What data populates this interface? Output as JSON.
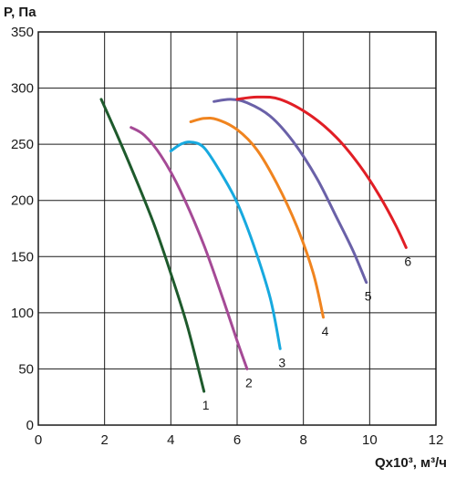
{
  "chart_data": {
    "type": "line",
    "ylabel": "P, Па",
    "xlabel": "Qx10³, м³/ч",
    "xlim": [
      0,
      12
    ],
    "ylim": [
      0,
      350
    ],
    "xticks": [
      0,
      2,
      4,
      6,
      8,
      10,
      12
    ],
    "yticks": [
      0,
      50,
      100,
      150,
      200,
      250,
      300,
      350
    ],
    "grid": true,
    "series": [
      {
        "name": "1",
        "color": "#1e5a2c",
        "points": [
          [
            1.9,
            290
          ],
          [
            2.5,
            250
          ],
          [
            3.0,
            215
          ],
          [
            3.5,
            178
          ],
          [
            4.0,
            135
          ],
          [
            4.5,
            88
          ],
          [
            5.0,
            30
          ]
        ]
      },
      {
        "name": "2",
        "color": "#a54a96",
        "points": [
          [
            2.8,
            265
          ],
          [
            3.2,
            258
          ],
          [
            3.7,
            240
          ],
          [
            4.3,
            208
          ],
          [
            5.0,
            160
          ],
          [
            5.6,
            110
          ],
          [
            6.0,
            75
          ],
          [
            6.3,
            50
          ]
        ]
      },
      {
        "name": "3",
        "color": "#17a9df",
        "points": [
          [
            4.0,
            244
          ],
          [
            4.3,
            250
          ],
          [
            4.6,
            252
          ],
          [
            5.0,
            247
          ],
          [
            5.5,
            225
          ],
          [
            6.0,
            198
          ],
          [
            6.5,
            160
          ],
          [
            7.0,
            113
          ],
          [
            7.3,
            68
          ]
        ]
      },
      {
        "name": "4",
        "color": "#f0841f",
        "points": [
          [
            4.6,
            270
          ],
          [
            5.0,
            273
          ],
          [
            5.4,
            272
          ],
          [
            6.0,
            263
          ],
          [
            6.6,
            245
          ],
          [
            7.2,
            215
          ],
          [
            7.8,
            177
          ],
          [
            8.3,
            135
          ],
          [
            8.6,
            96
          ]
        ]
      },
      {
        "name": "5",
        "color": "#6a61a8",
        "points": [
          [
            5.3,
            288
          ],
          [
            5.8,
            290
          ],
          [
            6.3,
            287
          ],
          [
            7.0,
            275
          ],
          [
            7.7,
            252
          ],
          [
            8.4,
            220
          ],
          [
            9.0,
            185
          ],
          [
            9.5,
            155
          ],
          [
            9.9,
            127
          ]
        ]
      },
      {
        "name": "6",
        "color": "#e11e25",
        "points": [
          [
            6.0,
            290
          ],
          [
            6.6,
            292
          ],
          [
            7.3,
            290
          ],
          [
            8.2,
            276
          ],
          [
            9.0,
            256
          ],
          [
            9.7,
            231
          ],
          [
            10.3,
            204
          ],
          [
            10.8,
            177
          ],
          [
            11.1,
            158
          ]
        ]
      }
    ]
  }
}
